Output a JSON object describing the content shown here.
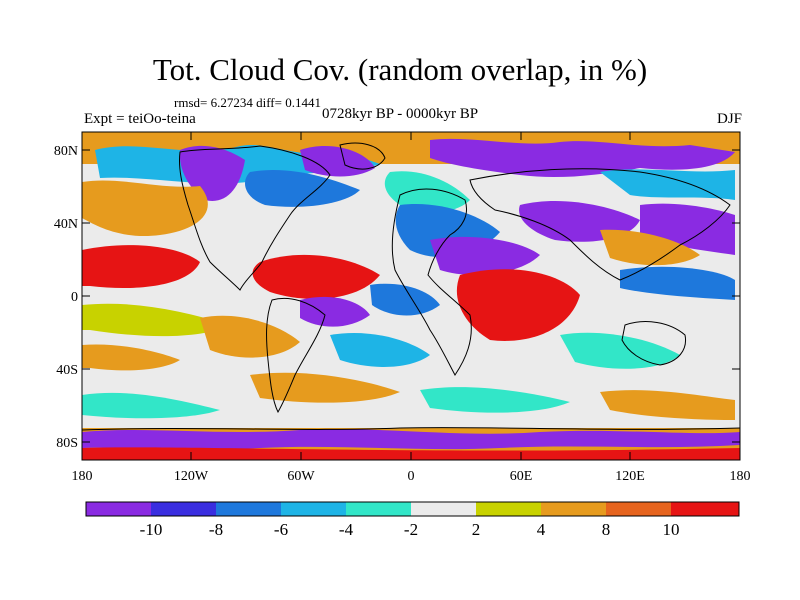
{
  "title": "Tot. Cloud Cov. (random overlap, in %)",
  "stats_line": "rmsd= 6.27234 diff= 0.1441",
  "experiment": "Expt = teiOo-teina",
  "period": "0728kyr BP - 0000kyr BP",
  "season": "DJF",
  "lat_ticks": [
    "80N",
    "40N",
    "0",
    "40S",
    "80S"
  ],
  "lon_ticks": [
    "180",
    "120W",
    "60W",
    "0",
    "60E",
    "120E",
    "180"
  ],
  "colorbar": {
    "labels": [
      "-10",
      "-8",
      "-6",
      "-4",
      "-2",
      "2",
      "4",
      "8",
      "10"
    ],
    "colors": [
      "#8a2be2",
      "#3a2ee0",
      "#1e78dc",
      "#1eb4e6",
      "#32e6c8",
      "#ebebeb",
      "#c8d200",
      "#e69b1e",
      "#e6641e",
      "#e61414"
    ]
  },
  "palette": {
    "purple": "#8a2be2",
    "dark_blue": "#3a2ee0",
    "blue": "#1e78dc",
    "light_blue": "#1eb4e6",
    "cyan": "#32e6c8",
    "neutral": "#ebebeb",
    "yellow": "#c8d200",
    "orange": "#e69b1e",
    "dark_orange": "#e6641e",
    "red": "#e61414"
  }
}
